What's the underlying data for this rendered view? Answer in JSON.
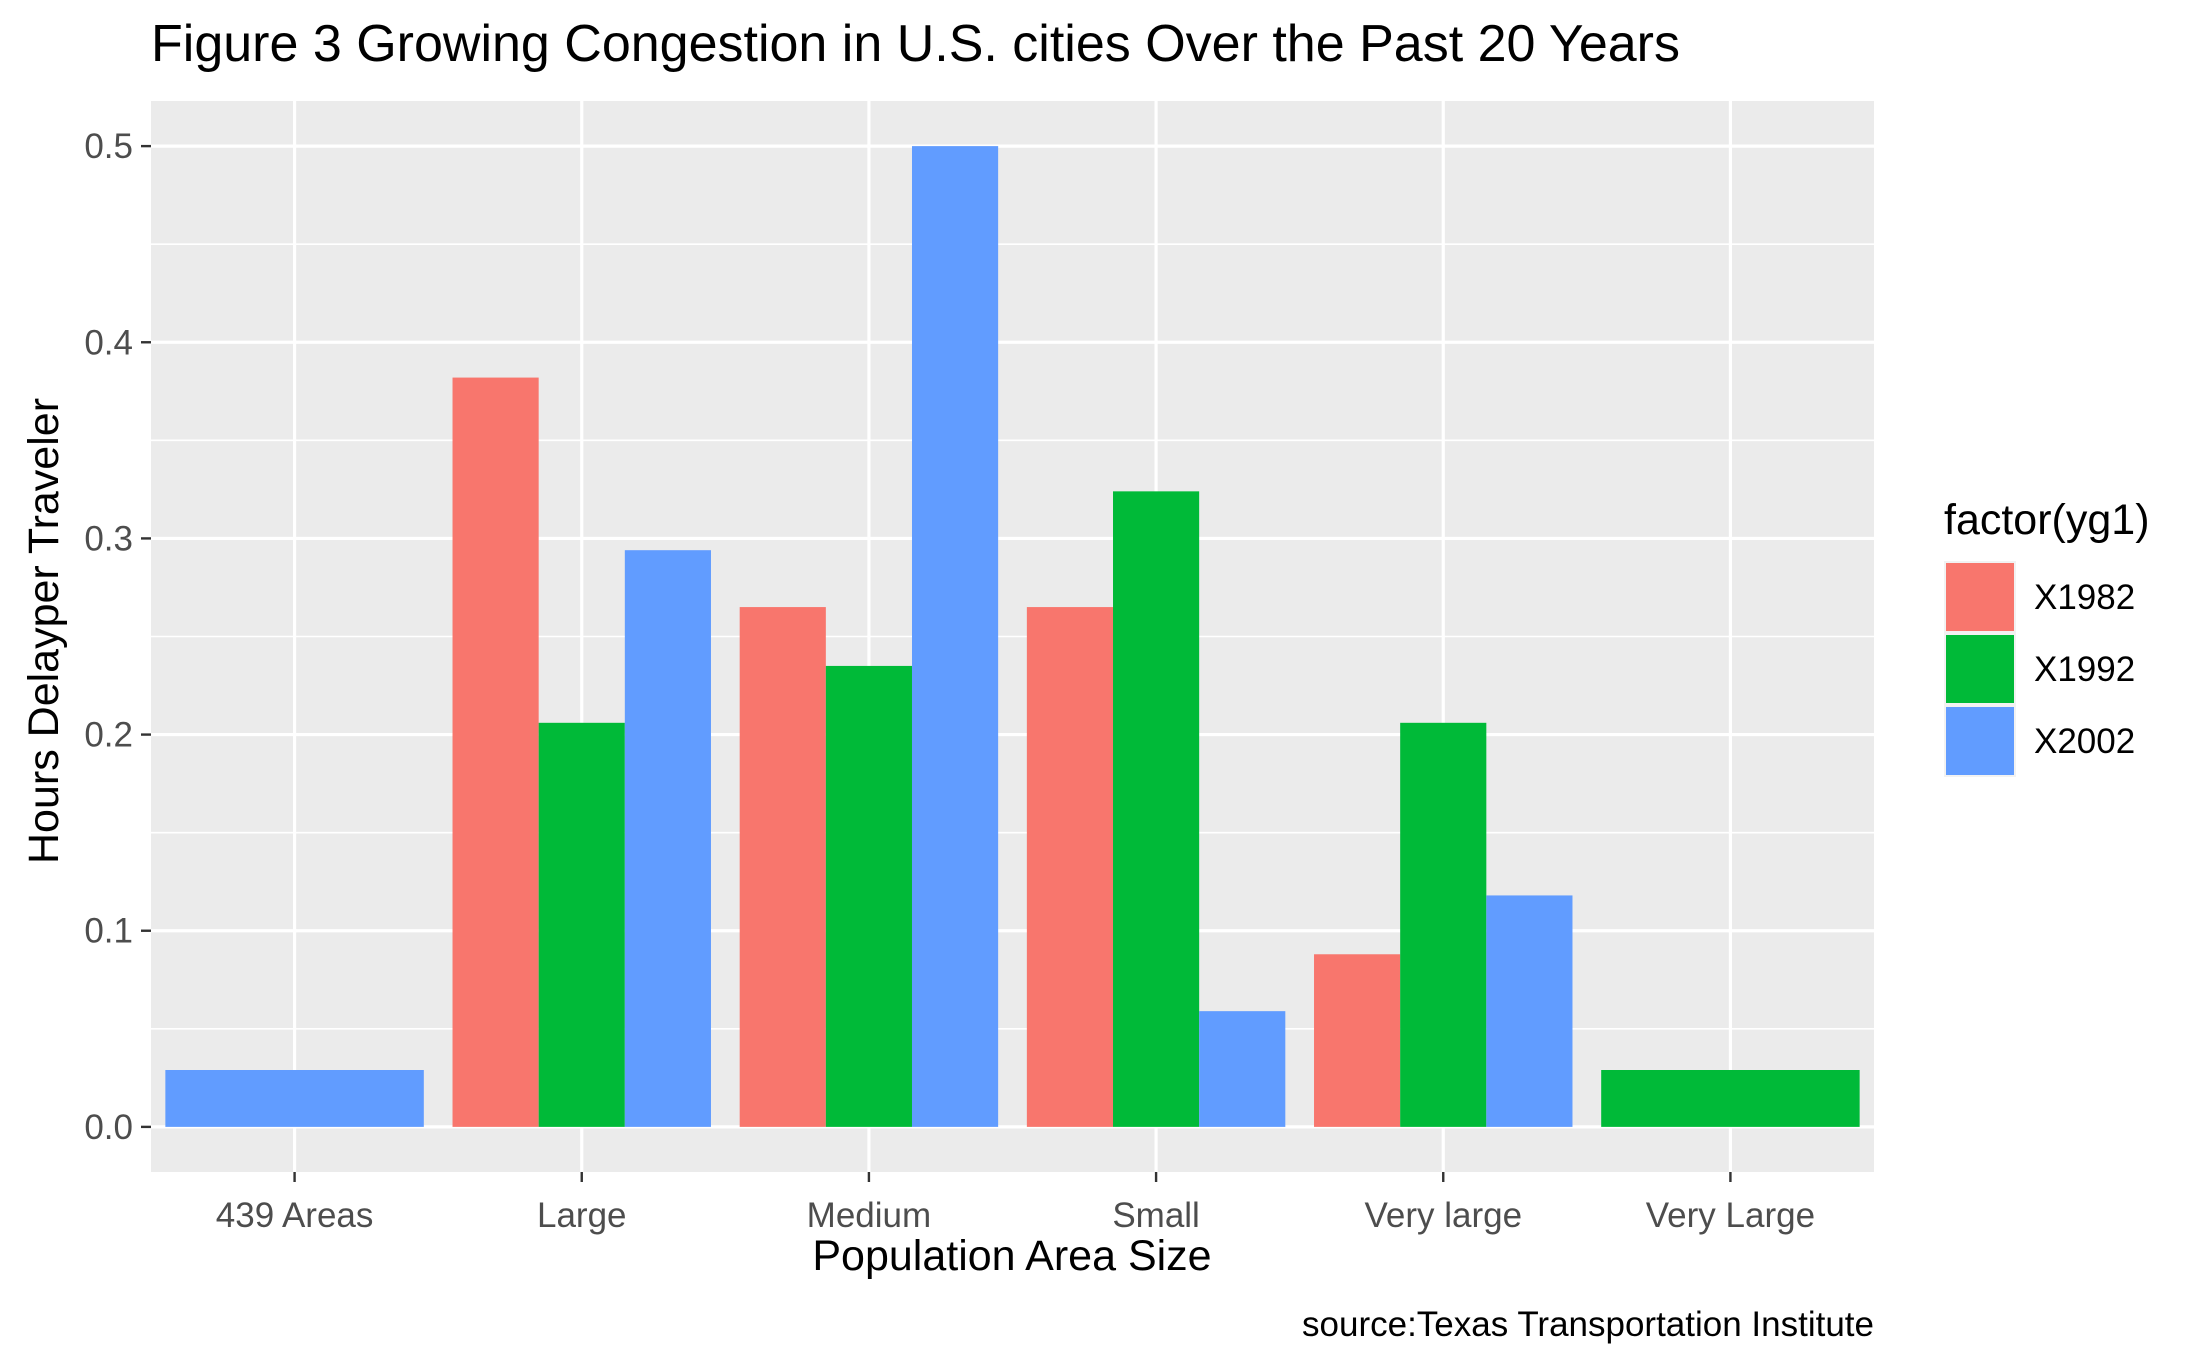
{
  "chart_data": {
    "type": "bar",
    "title": "Figure 3 Growing Congestion in U.S. cities Over the Past 20 Years",
    "xlabel": "Population Area Size",
    "ylabel": "Hours Delayper Traveler",
    "caption": "source:Texas Transportation Institute",
    "categories": [
      "439 Areas",
      "Large",
      "Medium",
      "Small",
      "Very large",
      "Very Large"
    ],
    "ylim": [
      -0.023,
      0.523
    ],
    "yticks": [
      0.0,
      0.1,
      0.2,
      0.3,
      0.4,
      0.5
    ],
    "ytick_labels": [
      "0.0",
      "0.1",
      "0.2",
      "0.3",
      "0.4",
      "0.5"
    ],
    "grid": true,
    "legend": {
      "title": "factor(yg1)",
      "position": "right"
    },
    "series": [
      {
        "name": "X1982",
        "color": "#F8766D",
        "values": [
          null,
          0.382,
          0.265,
          0.265,
          0.088,
          null
        ]
      },
      {
        "name": "X1992",
        "color": "#00BA38",
        "values": [
          null,
          0.206,
          0.235,
          0.324,
          0.206,
          0.029
        ]
      },
      {
        "name": "X2002",
        "color": "#619CFF",
        "values": [
          0.029,
          0.294,
          0.5,
          0.059,
          0.118,
          null
        ]
      }
    ],
    "panel_background": "#EBEBEB",
    "grid_color": "#FFFFFF"
  }
}
